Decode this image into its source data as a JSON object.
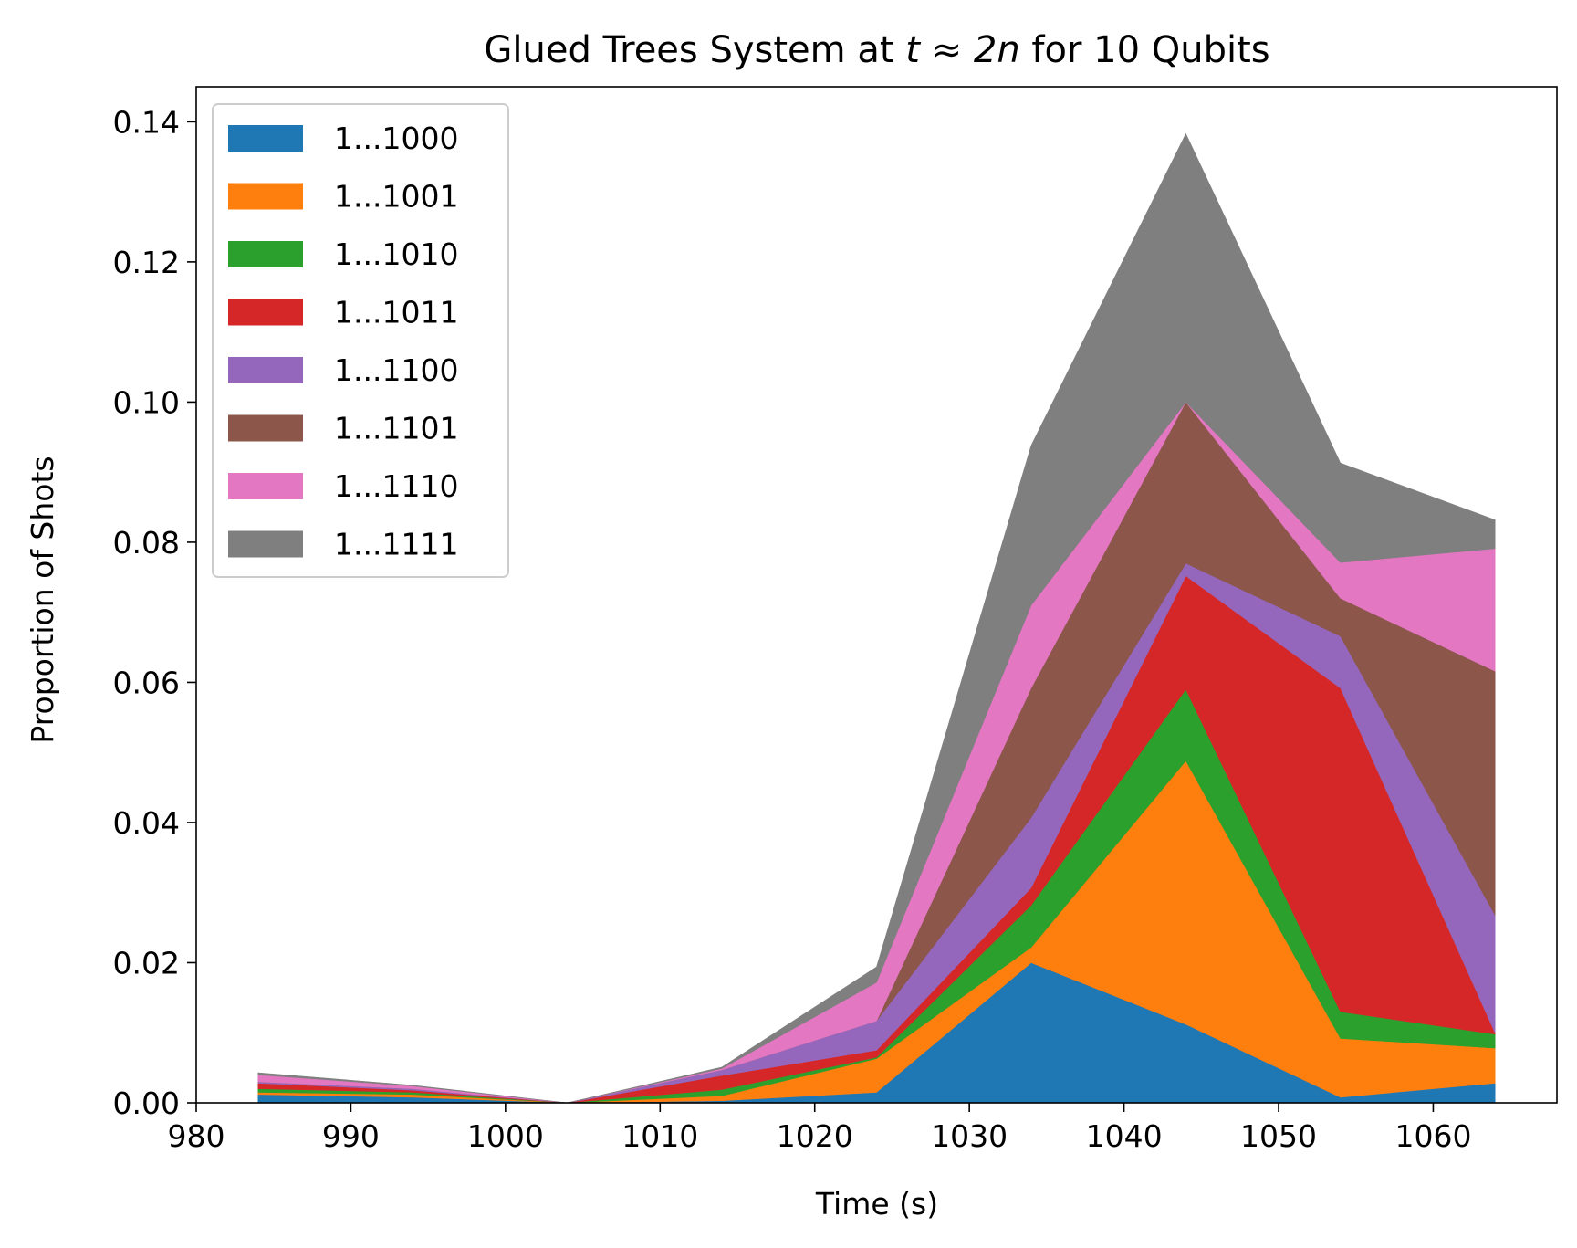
{
  "chart_data": {
    "type": "area",
    "stacked": true,
    "title_main": "Glued Trees System at ",
    "title_math": "t ≈ 2n",
    "title_tail": " for 10 Qubits",
    "xlabel": "Time (s)",
    "ylabel": "Proportion of Shots",
    "xlim": [
      980,
      1068
    ],
    "ylim": [
      0,
      0.145
    ],
    "xticks": [
      980,
      990,
      1000,
      1010,
      1020,
      1030,
      1040,
      1050,
      1060
    ],
    "xtick_labels": [
      "980",
      "990",
      "1000",
      "1010",
      "1020",
      "1030",
      "1040",
      "1050",
      "1060"
    ],
    "yticks": [
      0,
      0.02,
      0.04,
      0.06,
      0.08,
      0.1,
      0.12,
      0.14
    ],
    "ytick_labels": [
      "0.00",
      "0.02",
      "0.04",
      "0.06",
      "0.08",
      "0.10",
      "0.12",
      "0.14"
    ],
    "grid": false,
    "legend_position": "upper-left",
    "x": [
      984,
      994,
      1004,
      1014,
      1024,
      1034,
      1044,
      1054,
      1064
    ],
    "series": [
      {
        "name": "1...1000",
        "color": "#1f77b4",
        "values": [
          0.0012,
          0.0008,
          0.0,
          0.0003,
          0.0015,
          0.02,
          0.0112,
          0.0008,
          0.0028
        ]
      },
      {
        "name": "1...1001",
        "color": "#ff7f0e",
        "values": [
          0.0003,
          0.0004,
          0.0,
          0.0007,
          0.0048,
          0.0022,
          0.0376,
          0.0084,
          0.005
        ]
      },
      {
        "name": "1...1010",
        "color": "#2ca02c",
        "values": [
          0.0005,
          0.0003,
          0.0,
          0.0009,
          0.0002,
          0.006,
          0.0102,
          0.0038,
          0.002
        ]
      },
      {
        "name": "1...1011",
        "color": "#d62728",
        "values": [
          0.0008,
          0.0003,
          0.0,
          0.002,
          0.001,
          0.0025,
          0.0162,
          0.0462,
          0.0002
        ]
      },
      {
        "name": "1...1100",
        "color": "#9467bd",
        "values": [
          0.0002,
          0.0002,
          0.0,
          0.0008,
          0.0042,
          0.01,
          0.0018,
          0.0074,
          0.0168
        ]
      },
      {
        "name": "1...1101",
        "color": "#8c564b",
        "values": [
          0.0,
          0.0,
          0.0,
          0.0,
          0.0,
          0.0185,
          0.023,
          0.0054,
          0.0348
        ]
      },
      {
        "name": "1...1110",
        "color": "#e377c2",
        "values": [
          0.001,
          0.0004,
          0.0,
          0.0002,
          0.0055,
          0.0118,
          0.0,
          0.0051,
          0.0175
        ]
      },
      {
        "name": "1...1111",
        "color": "#7f7f7f",
        "values": [
          0.0003,
          0.0001,
          0.0,
          0.0002,
          0.0022,
          0.0228,
          0.0383,
          0.0142,
          0.0041
        ]
      }
    ]
  }
}
